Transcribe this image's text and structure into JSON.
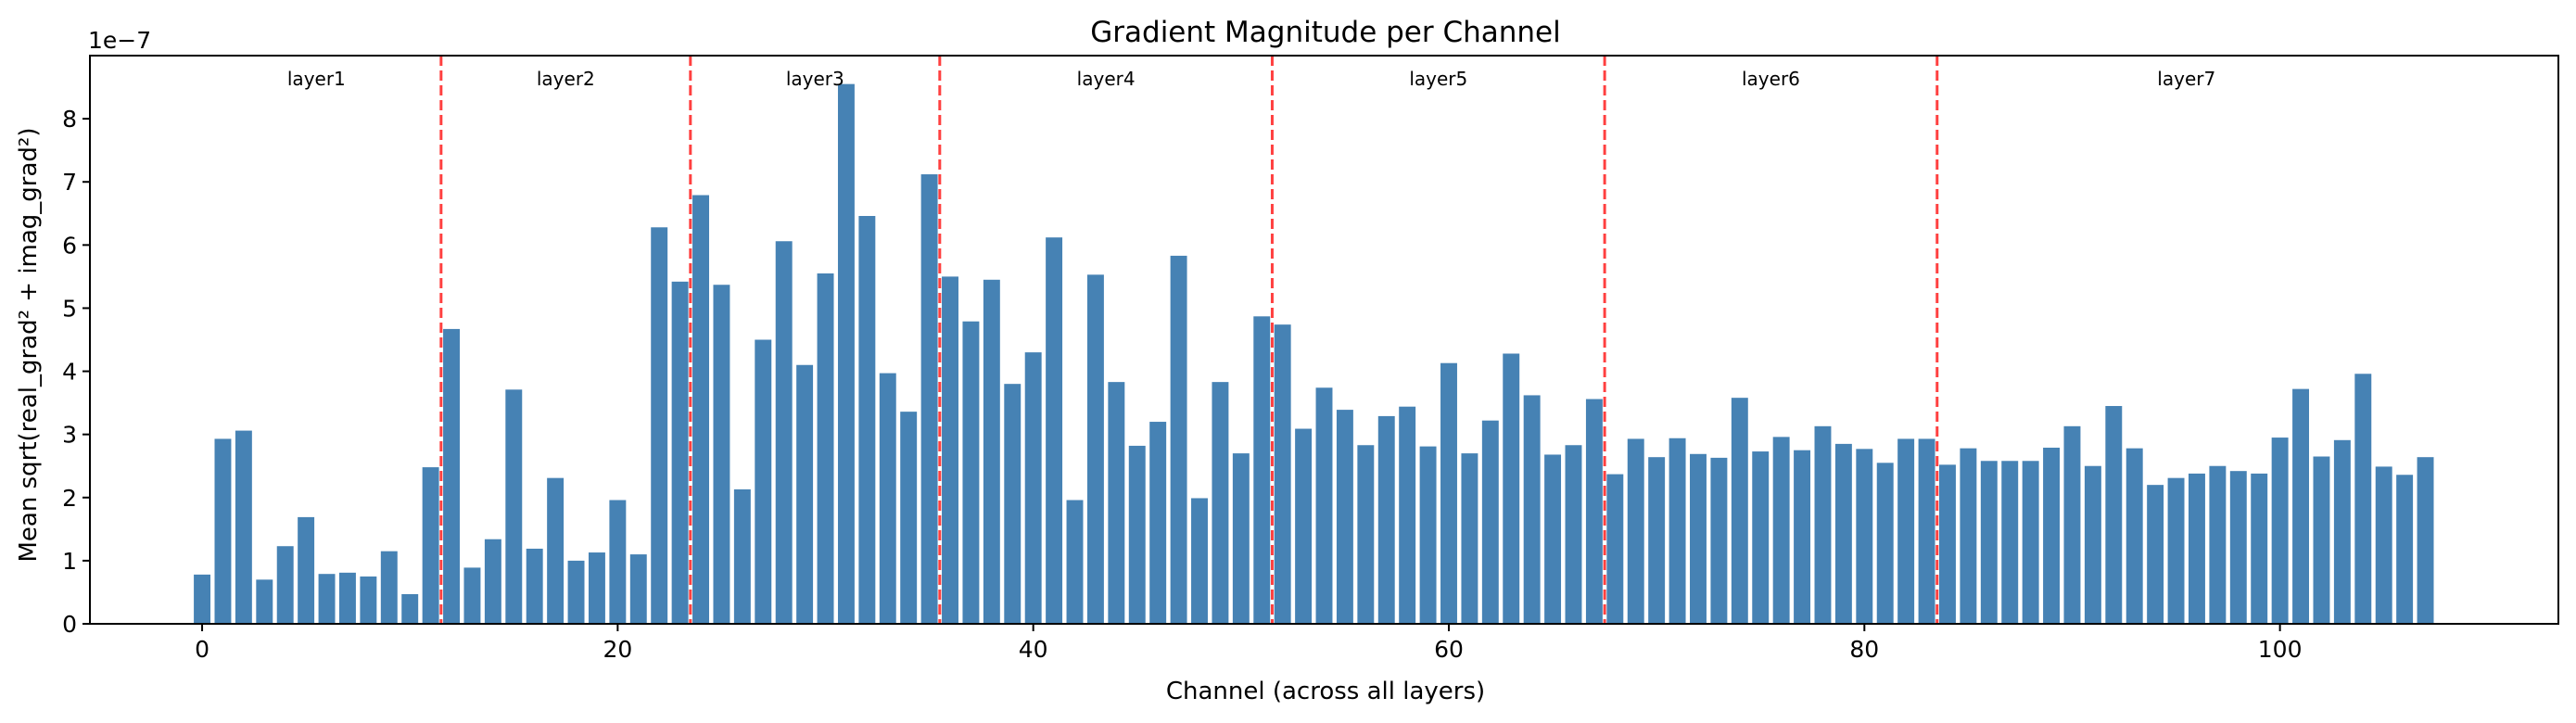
{
  "chart_data": {
    "type": "bar",
    "title": "Gradient Magnitude per Channel",
    "xlabel": "Channel (across all layers)",
    "ylabel": "Mean sqrt(real_grad² + imag_grad²)",
    "y_offset_label": "1e−7",
    "y_scale_exponent": -7,
    "xlim": [
      -5.4,
      113.4
    ],
    "ylim": [
      0,
      9.0
    ],
    "x_ticks": [
      0,
      20,
      40,
      60,
      80,
      100
    ],
    "y_ticks": [
      0,
      1,
      2,
      3,
      4,
      5,
      6,
      7,
      8
    ],
    "bar_color": "#4682b4",
    "divider_color": "#ff0000",
    "x": [
      0,
      1,
      2,
      3,
      4,
      5,
      6,
      7,
      8,
      9,
      10,
      11,
      12,
      13,
      14,
      15,
      16,
      17,
      18,
      19,
      20,
      21,
      22,
      23,
      24,
      25,
      26,
      27,
      28,
      29,
      30,
      31,
      32,
      33,
      34,
      35,
      36,
      37,
      38,
      39,
      40,
      41,
      42,
      43,
      44,
      45,
      46,
      47,
      48,
      49,
      50,
      51,
      52,
      53,
      54,
      55,
      56,
      57,
      58,
      59,
      60,
      61,
      62,
      63,
      64,
      65,
      66,
      67,
      68,
      69,
      70,
      71,
      72,
      73,
      74,
      75,
      76,
      77,
      78,
      79,
      80,
      81,
      82,
      83,
      84,
      85,
      86,
      87,
      88,
      89,
      90,
      91,
      92,
      93,
      94,
      95,
      96,
      97,
      98,
      99,
      100,
      101,
      102,
      103,
      104,
      105,
      106,
      107
    ],
    "values": [
      0.78,
      2.93,
      3.06,
      0.7,
      1.23,
      1.69,
      0.79,
      0.81,
      0.75,
      1.15,
      0.47,
      2.48,
      4.67,
      0.89,
      1.34,
      3.71,
      1.19,
      2.31,
      1.0,
      1.13,
      1.96,
      1.1,
      6.28,
      5.42,
      6.79,
      5.37,
      2.13,
      4.5,
      6.06,
      4.1,
      5.55,
      8.55,
      6.46,
      3.97,
      3.36,
      7.12,
      5.5,
      4.79,
      5.45,
      3.8,
      4.3,
      6.12,
      1.96,
      5.53,
      3.83,
      2.82,
      3.2,
      5.83,
      1.99,
      3.83,
      2.7,
      4.87,
      4.74,
      3.09,
      3.74,
      3.39,
      2.83,
      3.29,
      3.44,
      2.81,
      4.13,
      2.7,
      3.22,
      4.28,
      3.62,
      2.68,
      2.83,
      3.56,
      2.37,
      2.93,
      2.64,
      2.94,
      2.69,
      2.63,
      3.58,
      2.73,
      2.96,
      2.75,
      3.13,
      2.85,
      2.77,
      2.55,
      2.93,
      2.93,
      2.52,
      2.78,
      2.58,
      2.58,
      2.58,
      2.79,
      3.13,
      2.5,
      3.45,
      2.78,
      2.2,
      2.31,
      2.38,
      2.5,
      2.42,
      2.38,
      2.95,
      3.72,
      2.65,
      2.91,
      3.96,
      2.49,
      2.36,
      2.64
    ],
    "layer_boundaries": [
      11.5,
      23.5,
      35.5,
      51.5,
      67.5,
      83.5
    ],
    "layers": [
      {
        "name": "layer1",
        "center": 5.5
      },
      {
        "name": "layer2",
        "center": 17.5
      },
      {
        "name": "layer3",
        "center": 29.5
      },
      {
        "name": "layer4",
        "center": 43.5
      },
      {
        "name": "layer5",
        "center": 59.5
      },
      {
        "name": "layer6",
        "center": 75.5
      },
      {
        "name": "layer7",
        "center": 95.5
      }
    ],
    "grid": false,
    "legend": "none"
  }
}
